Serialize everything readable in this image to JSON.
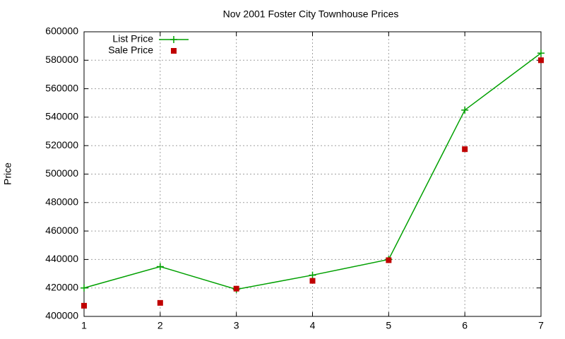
{
  "chart_data": {
    "type": "line",
    "title": "Nov 2001 Foster City Townhouse Prices",
    "y_label": "Price",
    "x": [
      1,
      2,
      3,
      4,
      5,
      6,
      7
    ],
    "series": [
      {
        "name": "List Price",
        "color": "#00a000",
        "style": "linespoints",
        "values": [
          420000,
          435000,
          419000,
          429000,
          440000,
          545000,
          585000
        ]
      },
      {
        "name": "Sale Price",
        "color": "#c00000",
        "style": "points",
        "values": [
          407500,
          409500,
          419500,
          425000,
          439500,
          517500,
          580000
        ]
      }
    ],
    "xlim": [
      1,
      7
    ],
    "xticks": [
      1,
      2,
      3,
      4,
      5,
      6,
      7
    ],
    "ylim": [
      400000,
      600000
    ],
    "yticks": [
      400000,
      420000,
      440000,
      460000,
      480000,
      500000,
      520000,
      540000,
      560000,
      580000,
      600000
    ],
    "grid": true,
    "legend": "top-left"
  }
}
